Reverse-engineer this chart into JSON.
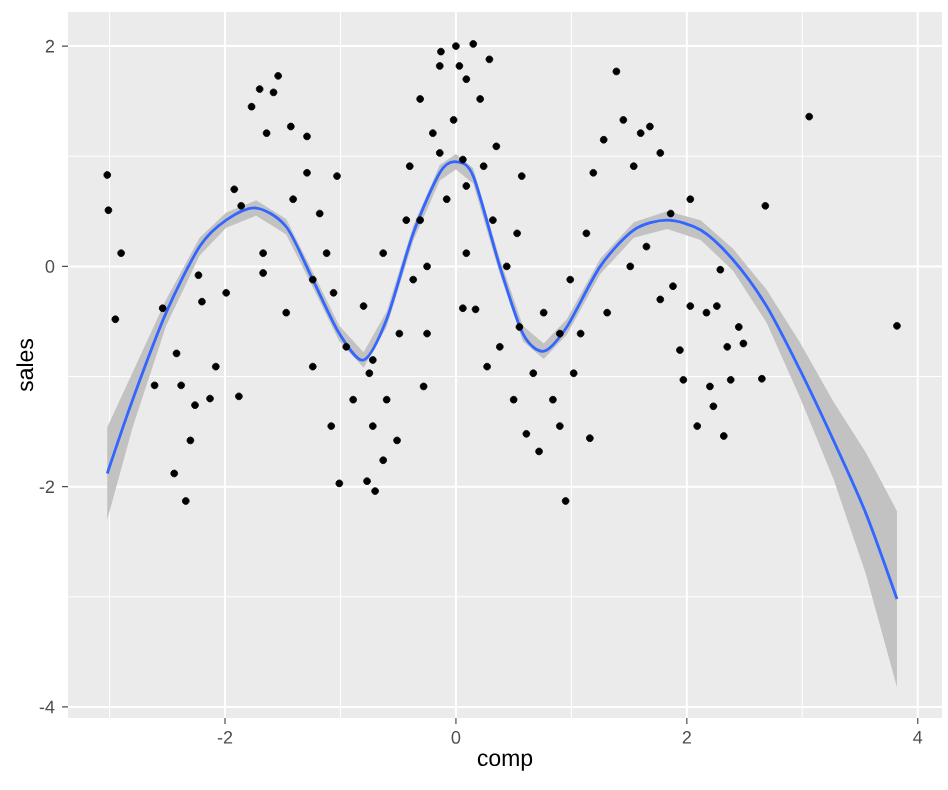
{
  "chart_data": {
    "type": "scatter",
    "xlabel": "comp",
    "ylabel": "sales",
    "xlim": [
      -3.36,
      4.21
    ],
    "ylim": [
      -4.1,
      2.31
    ],
    "xticks": [
      -2,
      0,
      2,
      4
    ],
    "yticks": [
      -4,
      -2,
      0,
      2
    ],
    "grid": true,
    "series": [
      {
        "marker": "circle",
        "color": "#000000",
        "x": [
          -3.02,
          -3.01,
          -2.9,
          -2.95,
          -2.61,
          -2.44,
          -2.34,
          -2.3,
          -2.26,
          -2.38,
          -2.42,
          -2.54,
          -2.23,
          -2.2,
          -2.13,
          -2.08,
          -1.99,
          -1.88,
          -1.92,
          -1.86,
          -1.77,
          -1.7,
          -1.54,
          -1.58,
          -1.64,
          -1.43,
          -1.29,
          -1.67,
          -1.67,
          -1.47,
          -1.41,
          -1.29,
          -1.18,
          -1.12,
          -1.24,
          -1.06,
          -1.24,
          -1.03,
          -1.01,
          -1.08,
          -0.95,
          -0.89,
          -0.8,
          -0.75,
          -0.72,
          -0.77,
          -0.7,
          -0.63,
          -0.6,
          -0.63,
          -0.51,
          -0.49,
          -0.43,
          -0.4,
          -0.31,
          -0.37,
          -0.28,
          -0.25,
          -0.2,
          -0.14,
          -0.13,
          -0.08,
          -0.02,
          0,
          0.03,
          0.09,
          0.15,
          0.29,
          0.06,
          0.21,
          0.09,
          0.06,
          0.17,
          0.24,
          0.32,
          0.35,
          0.44,
          0.27,
          0.38,
          0.5,
          0.53,
          0.57,
          0.55,
          0.61,
          0.67,
          0.72,
          0.76,
          0.84,
          0.95,
          0.9,
          0.99,
          1.02,
          1.08,
          1.16,
          1.13,
          1.19,
          1.31,
          1.28,
          1.39,
          1.45,
          1.54,
          1.51,
          1.6,
          1.68,
          1.77,
          1.65,
          1.77,
          1.88,
          1.86,
          2.03,
          1.94,
          1.97,
          2.03,
          2.09,
          2.17,
          2.2,
          2.23,
          2.26,
          2.29,
          2.32,
          2.35,
          2.38,
          2.45,
          2.49,
          2.65,
          2.68,
          3.06,
          3.82,
          -0.72,
          -0.25,
          0.09,
          0.9,
          -0.14,
          -0.31
        ],
        "values": [
          0.83,
          0.51,
          0.12,
          -0.48,
          -1.08,
          -1.88,
          -2.13,
          -1.58,
          -1.26,
          -1.08,
          -0.79,
          -0.38,
          -0.08,
          -0.32,
          -1.2,
          -0.91,
          -0.24,
          -1.18,
          0.7,
          0.55,
          1.45,
          1.61,
          1.73,
          1.58,
          1.21,
          1.27,
          1.18,
          0.12,
          -0.06,
          -0.42,
          0.61,
          0.85,
          0.48,
          0.12,
          -0.12,
          -0.24,
          -0.91,
          0.82,
          -1.97,
          -1.45,
          -0.73,
          -1.21,
          -0.36,
          -0.97,
          -1.45,
          -1.95,
          -2.04,
          -1.76,
          -1.21,
          0.12,
          -1.58,
          -0.61,
          0.42,
          0.91,
          1.52,
          -0.12,
          -1.09,
          -0.61,
          1.21,
          1.82,
          1.95,
          0.61,
          1.33,
          2.0,
          1.82,
          1.7,
          2.02,
          1.88,
          0.97,
          1.52,
          0.12,
          -0.38,
          -0.39,
          0.91,
          0.42,
          1.09,
          0.0,
          -0.91,
          -0.73,
          -1.21,
          0.3,
          0.82,
          -0.55,
          -1.52,
          -0.97,
          -1.68,
          -0.42,
          -1.21,
          -2.13,
          -1.45,
          -0.12,
          -0.97,
          -0.61,
          -1.56,
          0.3,
          0.85,
          -0.42,
          1.15,
          1.77,
          1.33,
          0.91,
          0.0,
          1.21,
          1.27,
          1.03,
          0.18,
          -0.3,
          -0.18,
          0.48,
          0.61,
          -0.76,
          -1.03,
          -0.36,
          -1.45,
          -0.42,
          -1.09,
          -1.27,
          -0.36,
          -0.03,
          -1.54,
          -0.73,
          -1.03,
          -0.55,
          -0.7,
          -1.02,
          0.55,
          1.36,
          -0.54,
          -0.85,
          0.0,
          0.73,
          -0.61,
          1.03,
          0.42
        ]
      },
      {
        "type": "line",
        "marker": "none",
        "color": "#3366ff",
        "x": [
          -3.02,
          -2.8,
          -2.51,
          -2.22,
          -1.99,
          -1.73,
          -1.47,
          -1.24,
          -1.01,
          -0.8,
          -0.6,
          -0.37,
          -0.14,
          0,
          0.15,
          0.38,
          0.58,
          0.76,
          0.96,
          1.25,
          1.54,
          1.83,
          2.12,
          2.4,
          2.69,
          2.98,
          3.27,
          3.55,
          3.82
        ],
        "values": [
          -1.88,
          -1.21,
          -0.42,
          0.18,
          0.42,
          0.53,
          0.36,
          -0.12,
          -0.61,
          -0.85,
          -0.48,
          0.3,
          0.85,
          0.95,
          0.82,
          0.0,
          -0.61,
          -0.77,
          -0.55,
          0.0,
          0.33,
          0.42,
          0.33,
          0.06,
          -0.36,
          -0.94,
          -1.58,
          -2.24,
          -3.02
        ],
        "lower": [
          -2.3,
          -1.46,
          -0.54,
          0.1,
          0.35,
          0.46,
          0.29,
          -0.19,
          -0.68,
          -0.92,
          -0.55,
          0.23,
          0.78,
          0.88,
          0.75,
          -0.07,
          -0.68,
          -0.84,
          -0.62,
          -0.07,
          0.26,
          0.34,
          0.24,
          -0.04,
          -0.51,
          -1.19,
          -1.93,
          -2.79,
          -3.82
        ],
        "upper": [
          -1.46,
          -0.96,
          -0.3,
          0.26,
          0.49,
          0.6,
          0.43,
          -0.05,
          -0.54,
          -0.78,
          -0.41,
          0.37,
          0.92,
          1.02,
          0.89,
          0.07,
          -0.54,
          -0.7,
          -0.48,
          0.07,
          0.4,
          0.5,
          0.42,
          0.16,
          -0.21,
          -0.69,
          -1.23,
          -1.69,
          -2.22
        ]
      }
    ]
  }
}
